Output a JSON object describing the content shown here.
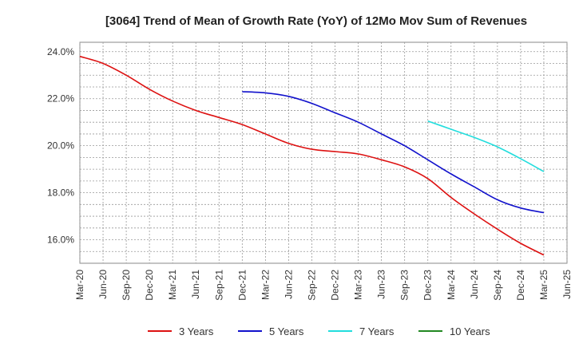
{
  "chart_data": {
    "type": "line",
    "title": "[3064]  Trend of Mean of Growth Rate (YoY) of 12Mo Mov Sum of Revenues",
    "xlabel": "",
    "ylabel": "",
    "ylim": [
      15.0,
      24.4
    ],
    "y_ticks": [
      16.0,
      18.0,
      20.0,
      22.0,
      24.0
    ],
    "y_tick_labels": [
      "16.0%",
      "18.0%",
      "20.0%",
      "22.0%",
      "24.0%"
    ],
    "x_ticks": [
      "Mar-20",
      "Jun-20",
      "Sep-20",
      "Dec-20",
      "Mar-21",
      "Jun-21",
      "Sep-21",
      "Dec-21",
      "Mar-22",
      "Jun-22",
      "Sep-22",
      "Dec-22",
      "Mar-23",
      "Jun-23",
      "Sep-23",
      "Dec-23",
      "Mar-24",
      "Jun-24",
      "Sep-24",
      "Dec-24",
      "Mar-25",
      "Jun-25"
    ],
    "grid": true,
    "legend_position": "bottom",
    "series": [
      {
        "name": "3 Years",
        "color": "#dd1111",
        "start_index": 0,
        "values": [
          23.8,
          23.5,
          23.0,
          22.4,
          21.9,
          21.5,
          21.2,
          20.9,
          20.5,
          20.1,
          19.85,
          19.75,
          19.65,
          19.4,
          19.1,
          18.6,
          17.8,
          17.1,
          16.45,
          15.85,
          15.35
        ]
      },
      {
        "name": "5 Years",
        "color": "#1111cc",
        "start_index": 7,
        "values": [
          22.3,
          22.25,
          22.1,
          21.8,
          21.4,
          21.0,
          20.5,
          20.0,
          19.4,
          18.8,
          18.25,
          17.7,
          17.35,
          17.15
        ]
      },
      {
        "name": "7 Years",
        "color": "#22dddd",
        "start_index": 15,
        "values": [
          21.05,
          20.7,
          20.35,
          19.95,
          19.45,
          18.9
        ]
      },
      {
        "name": "10 Years",
        "color": "#228822",
        "start_index": 0,
        "values": []
      }
    ]
  }
}
